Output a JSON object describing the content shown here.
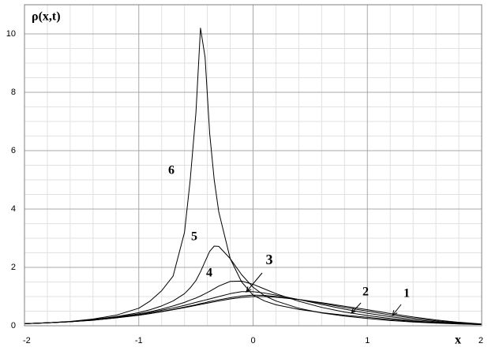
{
  "chart_data": {
    "type": "line",
    "y_label": "ρ(x,t)",
    "x_label": "x",
    "x": [
      -2,
      -1.8,
      -1.6,
      -1.4,
      -1.2,
      -1,
      -0.9,
      -0.8,
      -0.7,
      -0.6,
      -0.55,
      -0.5,
      -0.46,
      -0.42,
      -0.38,
      -0.34,
      -0.3,
      -0.2,
      -0.1,
      0,
      0.1,
      0.2,
      0.4,
      0.6,
      0.8,
      1,
      1.2,
      1.4,
      1.6,
      1.8,
      2
    ],
    "series": [
      {
        "name": "1",
        "color": "#000000",
        "values": [
          0.07,
          0.1,
          0.14,
          0.19,
          0.27,
          0.36,
          0.42,
          0.48,
          0.55,
          0.62,
          0.66,
          0.7,
          0.73,
          0.76,
          0.79,
          0.82,
          0.85,
          0.92,
          0.97,
          1.0,
          1.0,
          0.98,
          0.9,
          0.79,
          0.67,
          0.55,
          0.42,
          0.3,
          0.2,
          0.12,
          0.06
        ]
      },
      {
        "name": "2",
        "color": "#000000",
        "values": [
          0.07,
          0.1,
          0.14,
          0.19,
          0.27,
          0.36,
          0.42,
          0.49,
          0.56,
          0.64,
          0.68,
          0.72,
          0.76,
          0.79,
          0.83,
          0.86,
          0.89,
          0.96,
          1.02,
          1.05,
          1.04,
          1.0,
          0.9,
          0.77,
          0.63,
          0.5,
          0.37,
          0.26,
          0.17,
          0.1,
          0.05
        ]
      },
      {
        "name": "3",
        "color": "#000000",
        "values": [
          0.07,
          0.1,
          0.14,
          0.2,
          0.28,
          0.38,
          0.45,
          0.53,
          0.61,
          0.7,
          0.75,
          0.8,
          0.84,
          0.88,
          0.92,
          0.96,
          1.0,
          1.1,
          1.17,
          1.17,
          1.12,
          1.05,
          0.9,
          0.73,
          0.57,
          0.43,
          0.31,
          0.21,
          0.14,
          0.08,
          0.05
        ]
      },
      {
        "name": "4",
        "color": "#000000",
        "values": [
          0.07,
          0.1,
          0.14,
          0.2,
          0.29,
          0.41,
          0.48,
          0.57,
          0.68,
          0.8,
          0.88,
          0.95,
          1.02,
          1.1,
          1.18,
          1.27,
          1.36,
          1.52,
          1.53,
          1.42,
          1.26,
          1.1,
          0.84,
          0.63,
          0.47,
          0.35,
          0.25,
          0.17,
          0.11,
          0.07,
          0.04
        ]
      },
      {
        "name": "5",
        "color": "#000000",
        "values": [
          0.07,
          0.1,
          0.14,
          0.21,
          0.31,
          0.45,
          0.55,
          0.68,
          0.85,
          1.1,
          1.3,
          1.55,
          1.85,
          2.2,
          2.55,
          2.73,
          2.72,
          2.3,
          1.75,
          1.32,
          1.03,
          0.85,
          0.6,
          0.44,
          0.33,
          0.25,
          0.18,
          0.13,
          0.09,
          0.06,
          0.04
        ]
      },
      {
        "name": "6",
        "color": "#000000",
        "values": [
          0.07,
          0.1,
          0.15,
          0.23,
          0.36,
          0.6,
          0.85,
          1.2,
          1.7,
          3.2,
          5.0,
          7.3,
          10.2,
          9.2,
          6.6,
          5.0,
          3.9,
          2.3,
          1.5,
          1.05,
          0.85,
          0.72,
          0.56,
          0.45,
          0.36,
          0.29,
          0.21,
          0.15,
          0.1,
          0.07,
          0.04
        ]
      }
    ],
    "xlim": [
      -2,
      2
    ],
    "xticks": [
      -2,
      -1,
      0,
      1,
      2
    ],
    "ylim": [
      0,
      11
    ],
    "yticks": [
      0,
      2,
      4,
      6,
      8,
      10
    ],
    "grid": true,
    "minor_x_divisions": 5,
    "minor_y_divisions": 4
  }
}
